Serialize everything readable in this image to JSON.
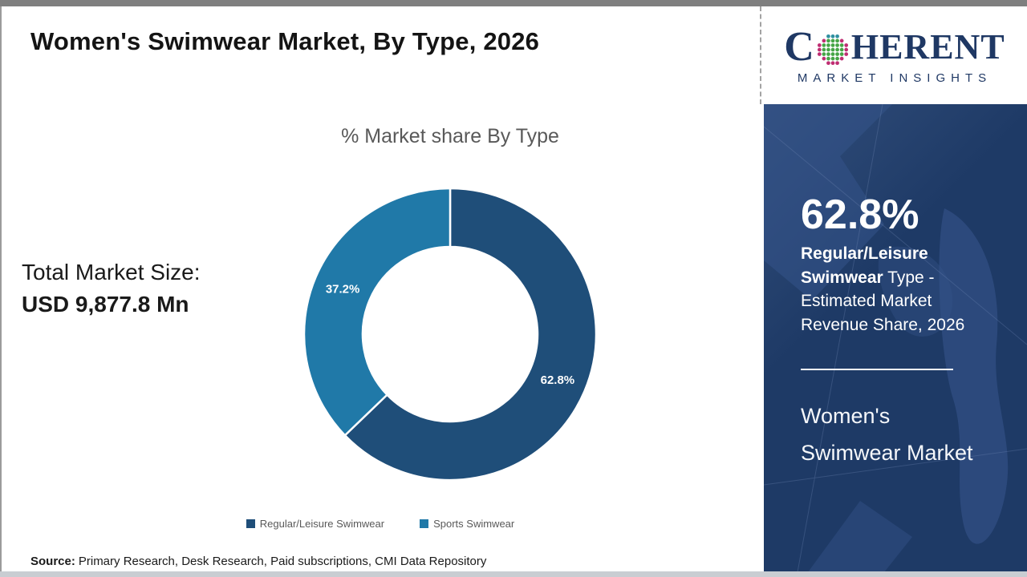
{
  "header": {
    "title": "Women's Swimwear Market, By Type, 2026"
  },
  "logo": {
    "brand_c": "C",
    "brand_rest": "HERENT",
    "tagline": "MARKET INSIGHTS",
    "globe_colors": {
      "teal": "#2E8FA0",
      "green": "#46A546",
      "magenta": "#BF2D72"
    }
  },
  "left_panel": {
    "total_label": "Total Market Size:",
    "total_value": "USD 9,877.8 Mn"
  },
  "footer": {
    "source_label": "Source:",
    "source_text": "Primary Research, Desk Research, Paid subscriptions, CMI Data Repository"
  },
  "chart_data": {
    "type": "pie",
    "subtype": "donut",
    "title": "% Market share By Type",
    "categories": [
      "Regular/Leisure Swimwear",
      "Sports Swimwear"
    ],
    "values": [
      62.8,
      37.2
    ],
    "colors": [
      "#1F4E79",
      "#2079A8"
    ],
    "value_suffix": "%",
    "start_angle_deg": 0,
    "direction": "clockwise",
    "inner_radius_ratio": 0.6,
    "legend_position": "bottom"
  },
  "sidebar": {
    "stat_value": "62.8%",
    "stat_desc_bold": "Regular/Leisure Swimwear",
    "stat_desc_rest": " Type - Estimated Market Revenue Share, 2026",
    "market_line1": "Women's",
    "market_line2": "Swimwear Market"
  },
  "colors": {
    "brand_navy": "#1F3864",
    "slice_dark": "#1F4E79",
    "slice_teal": "#2079A8",
    "sidebar_background": "#1E3A66",
    "muted_text": "#595959"
  }
}
